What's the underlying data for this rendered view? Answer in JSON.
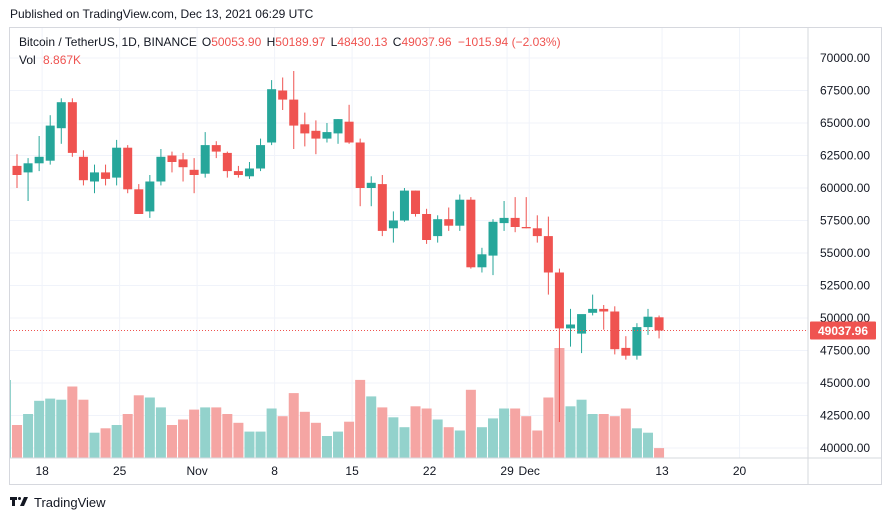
{
  "header": {
    "published": "Published on TradingView.com, Dec 13, 2021 06:29 UTC"
  },
  "legend": {
    "symbol": "Bitcoin / TetherUS, 1D, BINANCE",
    "open_label": "O",
    "open": "50053.90",
    "high_label": "H",
    "high": "50189.97",
    "low_label": "L",
    "low": "48430.13",
    "close_label": "C",
    "close": "49037.96",
    "change": "−1015.94 (−2.03%)",
    "vol_label": "Vol",
    "vol": "8.867K"
  },
  "footer": {
    "brand": "TradingView"
  },
  "colors": {
    "up": "#26a69a",
    "down": "#ef5350",
    "up_vol": "#93d2cc",
    "down_vol": "#f5a5a3",
    "grid": "#f0f3fa",
    "text": "#131722"
  },
  "chart_data": {
    "type": "candlestick",
    "x_ticks": [
      {
        "label": "18",
        "index": 2
      },
      {
        "label": "25",
        "index": 9
      },
      {
        "label": "Nov",
        "index": 16
      },
      {
        "label": "8",
        "index": 23
      },
      {
        "label": "15",
        "index": 30
      },
      {
        "label": "22",
        "index": 37
      },
      {
        "label": "29",
        "index": 44
      },
      {
        "label": "Dec",
        "index": 46
      },
      {
        "label": "13",
        "index": 58
      },
      {
        "label": "20",
        "index": 65
      }
    ],
    "y_ticks": [
      "40000.00",
      "42500.00",
      "45000.00",
      "47500.00",
      "50000.00",
      "52500.00",
      "55000.00",
      "57500.00",
      "60000.00",
      "62500.00",
      "65000.00",
      "67500.00",
      "70000.00"
    ],
    "ylim": [
      39500,
      71000
    ],
    "last_price_label": "49037.96",
    "last_price": 49037.96,
    "candles": [
      {
        "o": 61700,
        "h": 62600,
        "l": 60000,
        "c": 61000,
        "v": 0.3
      },
      {
        "o": 61200,
        "h": 62300,
        "l": 59000,
        "c": 61900,
        "v": 0.4
      },
      {
        "o": 61900,
        "h": 64000,
        "l": 61300,
        "c": 62400,
        "v": 0.52
      },
      {
        "o": 62100,
        "h": 65600,
        "l": 61800,
        "c": 64800,
        "v": 0.54
      },
      {
        "o": 64600,
        "h": 66900,
        "l": 63400,
        "c": 66600,
        "v": 0.53
      },
      {
        "o": 66600,
        "h": 66900,
        "l": 62400,
        "c": 62700,
        "v": 0.65
      },
      {
        "o": 62400,
        "h": 62900,
        "l": 60200,
        "c": 60600,
        "v": 0.53
      },
      {
        "o": 60500,
        "h": 61800,
        "l": 59600,
        "c": 61200,
        "v": 0.23
      },
      {
        "o": 61200,
        "h": 61800,
        "l": 60200,
        "c": 60700,
        "v": 0.27
      },
      {
        "o": 60800,
        "h": 63700,
        "l": 60200,
        "c": 63100,
        "v": 0.3
      },
      {
        "o": 63100,
        "h": 63300,
        "l": 59600,
        "c": 59900,
        "v": 0.4
      },
      {
        "o": 59900,
        "h": 60300,
        "l": 58000,
        "c": 58000,
        "v": 0.57
      },
      {
        "o": 58200,
        "h": 61000,
        "l": 57700,
        "c": 60500,
        "v": 0.55
      },
      {
        "o": 60500,
        "h": 63000,
        "l": 60200,
        "c": 62400,
        "v": 0.46
      },
      {
        "o": 62500,
        "h": 62800,
        "l": 61200,
        "c": 62000,
        "v": 0.3
      },
      {
        "o": 62200,
        "h": 62700,
        "l": 60500,
        "c": 61600,
        "v": 0.35
      },
      {
        "o": 61400,
        "h": 62300,
        "l": 59600,
        "c": 61000,
        "v": 0.44
      },
      {
        "o": 61100,
        "h": 64300,
        "l": 60800,
        "c": 63300,
        "v": 0.46
      },
      {
        "o": 63300,
        "h": 63600,
        "l": 62300,
        "c": 62800,
        "v": 0.46
      },
      {
        "o": 62700,
        "h": 62800,
        "l": 60800,
        "c": 61300,
        "v": 0.4
      },
      {
        "o": 61300,
        "h": 61700,
        "l": 60800,
        "c": 61000,
        "v": 0.32
      },
      {
        "o": 60900,
        "h": 62000,
        "l": 60700,
        "c": 61500,
        "v": 0.24
      },
      {
        "o": 61500,
        "h": 63800,
        "l": 61300,
        "c": 63300,
        "v": 0.24
      },
      {
        "o": 63500,
        "h": 68300,
        "l": 63300,
        "c": 67600,
        "v": 0.45
      },
      {
        "o": 67500,
        "h": 68500,
        "l": 66000,
        "c": 66800,
        "v": 0.38
      },
      {
        "o": 66800,
        "h": 69000,
        "l": 63000,
        "c": 64800,
        "v": 0.59
      },
      {
        "o": 64900,
        "h": 65800,
        "l": 63200,
        "c": 64200,
        "v": 0.42
      },
      {
        "o": 64400,
        "h": 65200,
        "l": 62600,
        "c": 63800,
        "v": 0.32
      },
      {
        "o": 63800,
        "h": 65000,
        "l": 63500,
        "c": 64300,
        "v": 0.2
      },
      {
        "o": 64200,
        "h": 65300,
        "l": 63400,
        "c": 65300,
        "v": 0.24
      },
      {
        "o": 65100,
        "h": 66400,
        "l": 63400,
        "c": 63500,
        "v": 0.33
      },
      {
        "o": 63500,
        "h": 63800,
        "l": 58600,
        "c": 60000,
        "v": 0.71
      },
      {
        "o": 60000,
        "h": 60900,
        "l": 58600,
        "c": 60400,
        "v": 0.56
      },
      {
        "o": 60300,
        "h": 61000,
        "l": 56300,
        "c": 56700,
        "v": 0.46
      },
      {
        "o": 56900,
        "h": 58200,
        "l": 55800,
        "c": 57500,
        "v": 0.37
      },
      {
        "o": 57500,
        "h": 60000,
        "l": 57400,
        "c": 59800,
        "v": 0.28
      },
      {
        "o": 59800,
        "h": 59800,
        "l": 57800,
        "c": 58000,
        "v": 0.47
      },
      {
        "o": 58000,
        "h": 58400,
        "l": 55700,
        "c": 56000,
        "v": 0.45
      },
      {
        "o": 56300,
        "h": 57900,
        "l": 55800,
        "c": 57600,
        "v": 0.35
      },
      {
        "o": 57600,
        "h": 58500,
        "l": 56700,
        "c": 57100,
        "v": 0.28
      },
      {
        "o": 57100,
        "h": 59500,
        "l": 56700,
        "c": 59100,
        "v": 0.25
      },
      {
        "o": 59100,
        "h": 59300,
        "l": 53800,
        "c": 53900,
        "v": 0.62
      },
      {
        "o": 53900,
        "h": 55400,
        "l": 53500,
        "c": 54900,
        "v": 0.28
      },
      {
        "o": 54800,
        "h": 57600,
        "l": 53300,
        "c": 57400,
        "v": 0.36
      },
      {
        "o": 57300,
        "h": 59000,
        "l": 56700,
        "c": 57700,
        "v": 0.45
      },
      {
        "o": 57700,
        "h": 59300,
        "l": 56600,
        "c": 57000,
        "v": 0.45
      },
      {
        "o": 57000,
        "h": 59300,
        "l": 56900,
        "c": 56900,
        "v": 0.38
      },
      {
        "o": 56900,
        "h": 57900,
        "l": 55800,
        "c": 56300,
        "v": 0.25
      },
      {
        "o": 56300,
        "h": 57800,
        "l": 51800,
        "c": 53500,
        "v": 0.55
      },
      {
        "o": 53500,
        "h": 53800,
        "l": 42000,
        "c": 49200,
        "v": 1.0
      },
      {
        "o": 49200,
        "h": 50700,
        "l": 47800,
        "c": 49500,
        "v": 0.47
      },
      {
        "o": 48800,
        "h": 50200,
        "l": 47300,
        "c": 50300,
        "v": 0.53
      },
      {
        "o": 50400,
        "h": 51800,
        "l": 50200,
        "c": 50700,
        "v": 0.4
      },
      {
        "o": 50700,
        "h": 51000,
        "l": 49100,
        "c": 50500,
        "v": 0.4
      },
      {
        "o": 50500,
        "h": 50900,
        "l": 47200,
        "c": 47600,
        "v": 0.38
      },
      {
        "o": 47700,
        "h": 48600,
        "l": 46800,
        "c": 47100,
        "v": 0.45
      },
      {
        "o": 47100,
        "h": 49600,
        "l": 46800,
        "c": 49300,
        "v": 0.27
      },
      {
        "o": 49300,
        "h": 50700,
        "l": 48700,
        "c": 50100,
        "v": 0.23
      },
      {
        "o": 50053.9,
        "h": 50189.97,
        "l": 48430.13,
        "c": 49037.96,
        "v": 0.09
      }
    ]
  }
}
